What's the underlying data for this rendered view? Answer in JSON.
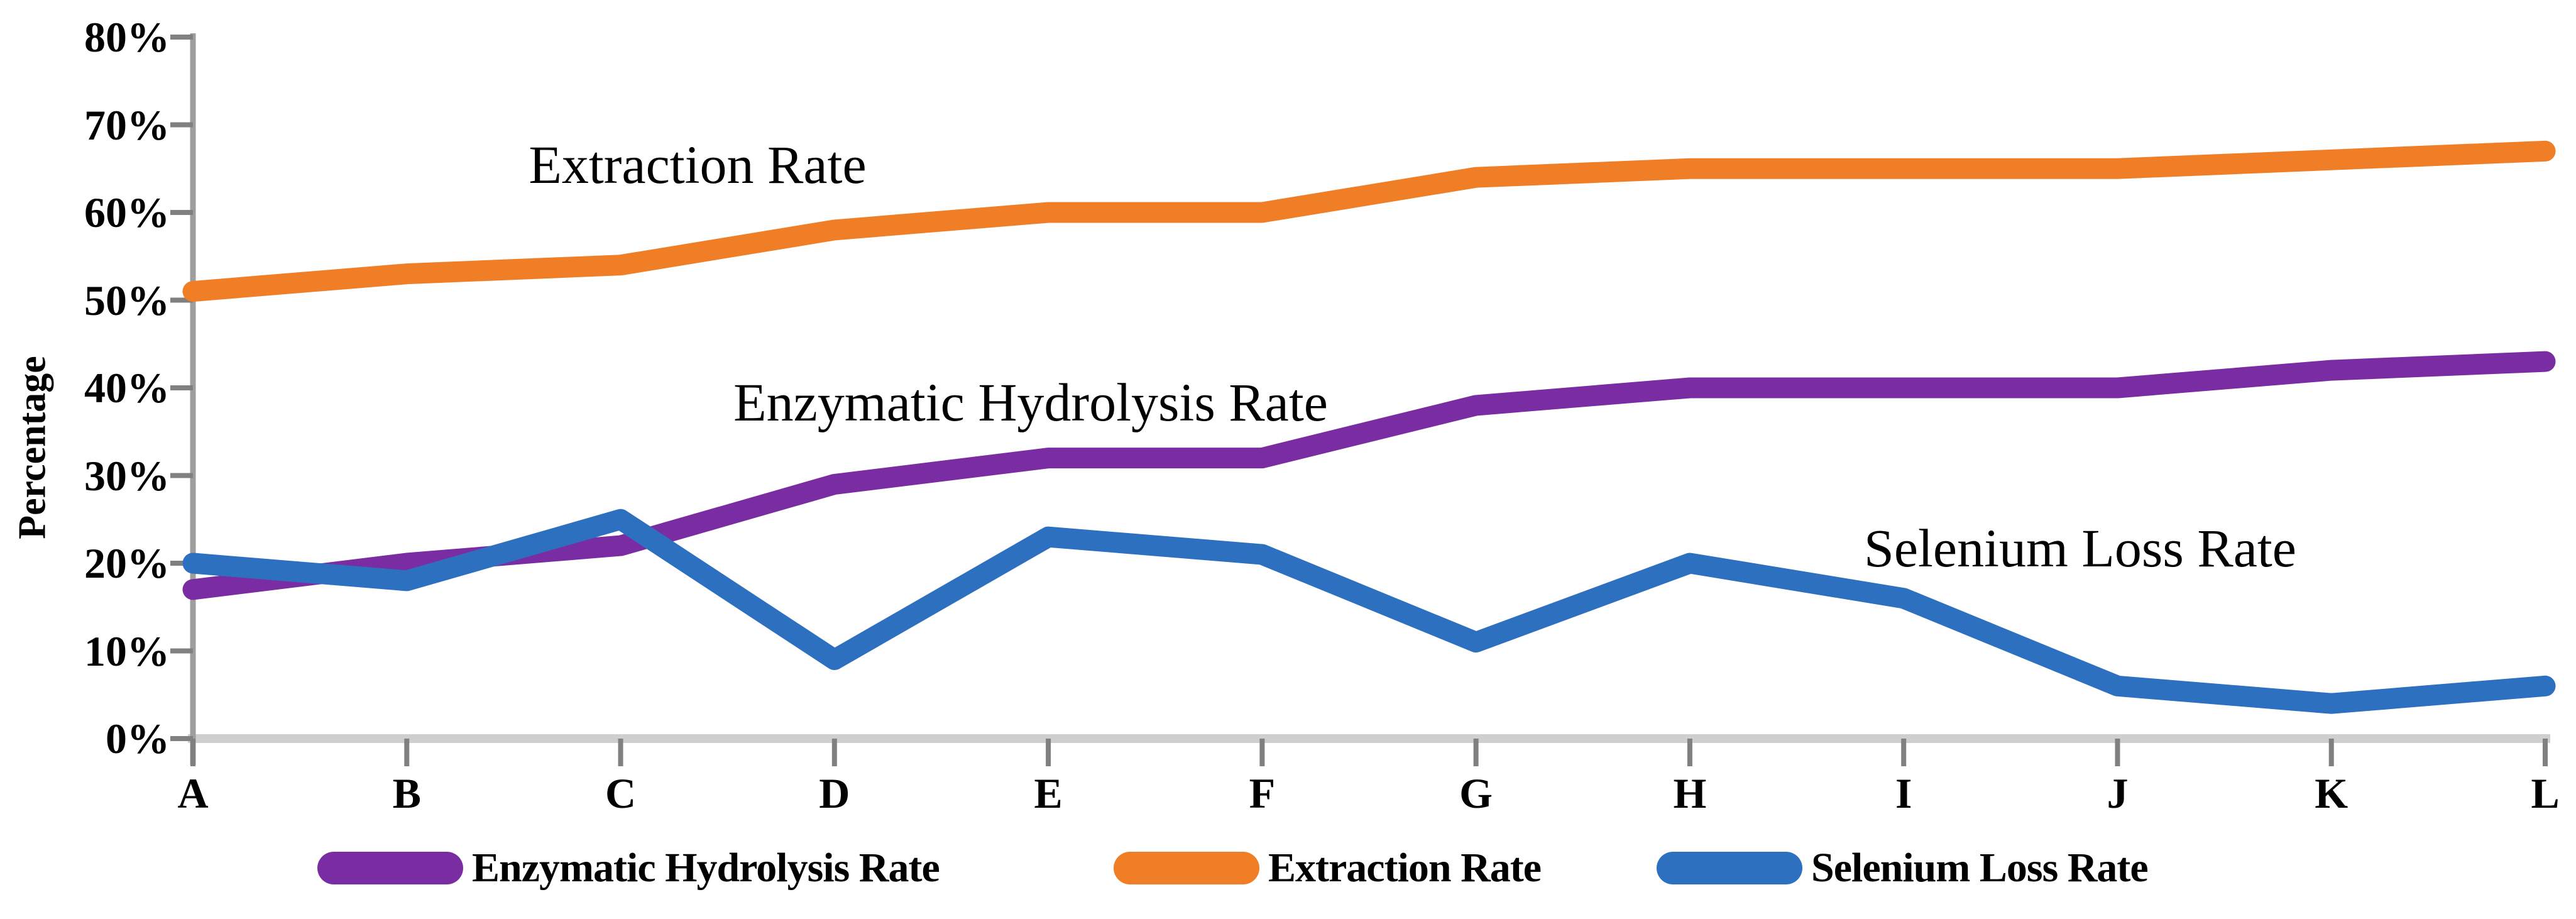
{
  "chart_data": {
    "type": "line",
    "title": "",
    "categories": [
      "A",
      "B",
      "C",
      "D",
      "E",
      "F",
      "G",
      "H",
      "I",
      "J",
      "K",
      "L"
    ],
    "series": [
      {
        "name": "Enzymatic Hydrolysis Rate",
        "color": "#7A2DA3",
        "values": [
          17,
          20,
          22,
          29,
          32,
          32,
          38,
          40,
          40,
          40,
          42,
          43
        ]
      },
      {
        "name": "Extraction Rate",
        "color": "#F07E26",
        "values": [
          51,
          53,
          54,
          58,
          60,
          60,
          64,
          65,
          65,
          65,
          66,
          67
        ]
      },
      {
        "name": "Selenium Loss Rate",
        "color": "#2D70C0",
        "values": [
          20,
          18,
          25,
          9,
          23,
          21,
          11,
          20,
          16,
          6,
          4,
          6
        ]
      }
    ],
    "xlabel": "",
    "ylabel": "Percentage",
    "ylim": [
      0,
      80
    ],
    "ytick_step": 10,
    "ytick_labels": [
      "0%",
      "10%",
      "20%",
      "30%",
      "40%",
      "50%",
      "60%",
      "70%",
      "80%"
    ],
    "grid": false,
    "legend_position": "bottom",
    "annotations": [
      {
        "text": "Extraction Rate",
        "cx": 1110,
        "cy": 262
      },
      {
        "text": "Enzymatic Hydrolysis Rate",
        "cx": 1640,
        "cy": 640
      },
      {
        "text": "Selenium Loss Rate",
        "cx": 3310,
        "cy": 872
      }
    ],
    "axis_colors": {
      "axis_line": "#9E9E9E",
      "tick": "#808080",
      "baseline": "#CFCFCF"
    }
  },
  "legend": {
    "items": [
      {
        "label": "Enzymatic Hydrolysis Rate",
        "color": "#7A2DA3",
        "x": 505
      },
      {
        "label": "Extraction Rate",
        "color": "#F07E26",
        "x": 1772
      },
      {
        "label": "Selenium Loss Rate",
        "color": "#2D70C0",
        "x": 2636
      }
    ]
  }
}
